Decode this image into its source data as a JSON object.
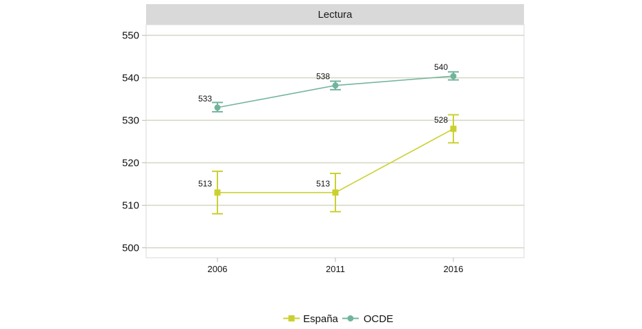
{
  "chart_data": {
    "type": "line",
    "facet": "Lectura",
    "x": [
      "2006",
      "2011",
      "2016"
    ],
    "ylim": [
      500,
      550
    ],
    "y_ticks": [
      500,
      510,
      520,
      530,
      540,
      550
    ],
    "grid": "horizontal",
    "legend_position": "bottom",
    "series": [
      {
        "name": "España",
        "color": "#cbd02f",
        "marker": "square",
        "values": [
          513,
          513,
          528
        ],
        "labels": [
          "513",
          "513",
          "528"
        ],
        "error_low": [
          508,
          508.5,
          524.7
        ],
        "error_high": [
          518,
          517.5,
          531.3
        ]
      },
      {
        "name": "OCDE",
        "color": "#72b49b",
        "marker": "circle",
        "values": [
          533,
          538.2,
          540.4
        ],
        "labels": [
          "533",
          "538",
          "540"
        ],
        "error_low": [
          532,
          537.2,
          539.5
        ],
        "error_high": [
          534.2,
          539.2,
          541.4
        ]
      }
    ]
  }
}
